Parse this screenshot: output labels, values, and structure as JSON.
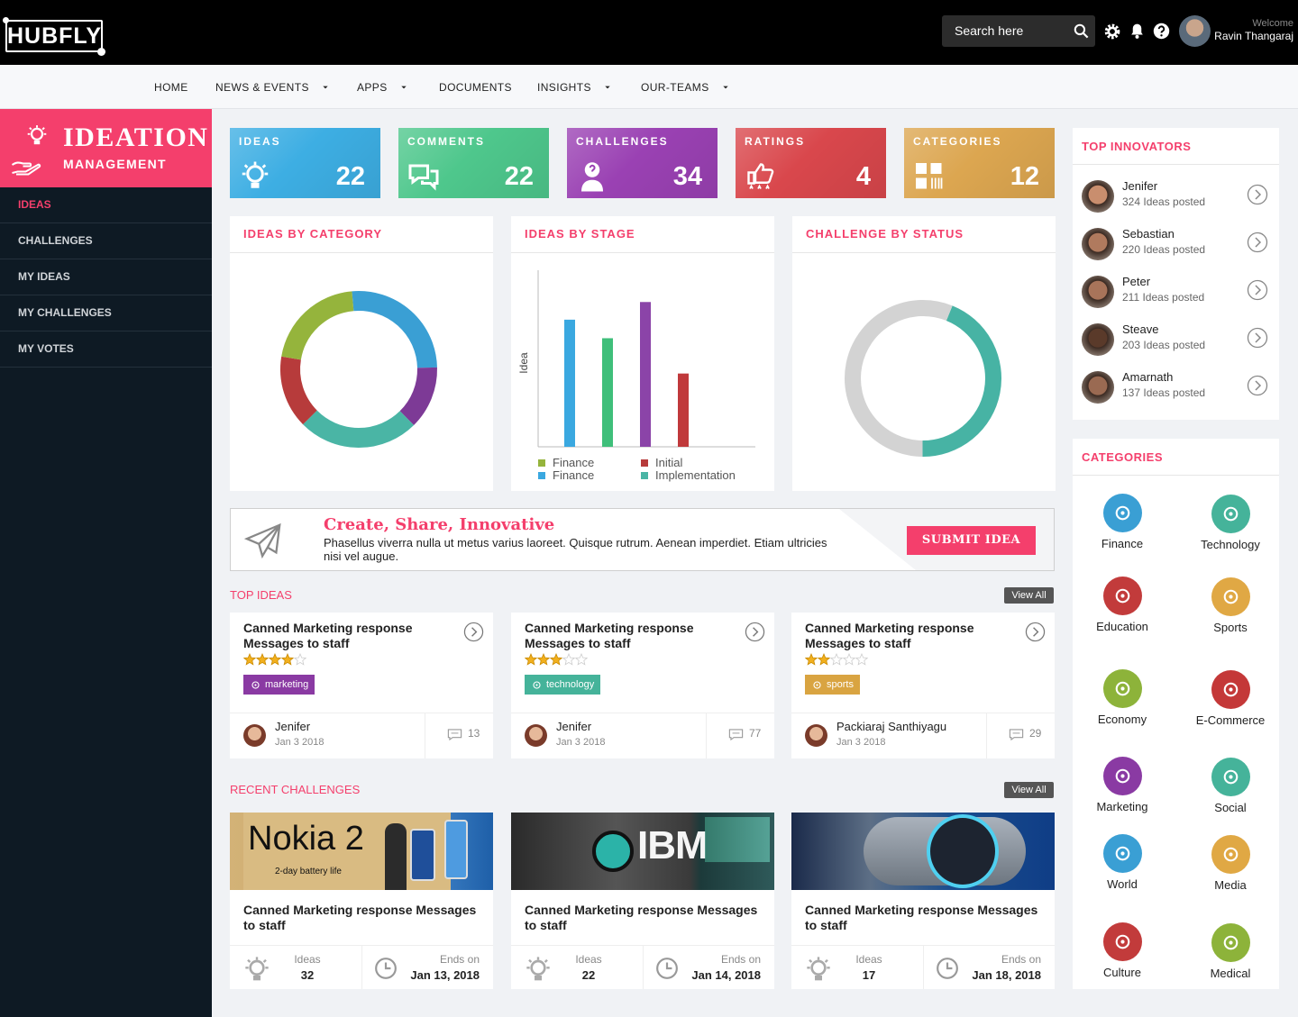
{
  "header": {
    "logo": "HUBFLY",
    "search": "Search here",
    "welcome": "Welcome",
    "user": "Ravin Thangaraj"
  },
  "nav": [
    {
      "label": "HOME",
      "dropdown": false
    },
    {
      "label": "NEWS & EVENTS",
      "dropdown": true
    },
    {
      "label": "APPS",
      "dropdown": true
    },
    {
      "label": "DOCUMENTS",
      "dropdown": false
    },
    {
      "label": "INSIGHTS",
      "dropdown": true
    },
    {
      "label": "OUR-TEAMS",
      "dropdown": true
    }
  ],
  "sidebar": {
    "title": "IDEATION",
    "subtitle": "MANAGEMENT",
    "items": [
      "IDEAS",
      "CHALLENGES",
      "MY IDEAS",
      "MY CHALLENGES",
      "MY VOTES"
    ],
    "active": 0
  },
  "stats": [
    {
      "label": "IDEAS",
      "value": 22,
      "color": "#3daee3"
    },
    {
      "label": "COMMENTS",
      "value": 22,
      "color": "#4ec78c"
    },
    {
      "label": "CHALLENGES",
      "value": 34,
      "color": "#9a41b3"
    },
    {
      "label": "RATINGS",
      "value": 4,
      "color": "#d9474c"
    },
    {
      "label": "CATEGORIES",
      "value": 12,
      "color": "#dca650"
    }
  ],
  "chart_data": [
    {
      "type": "donut",
      "title": "IDEAS BY CATEGORY",
      "values": [
        26,
        13,
        25,
        15,
        21
      ],
      "colors": [
        "#3a9fd4",
        "#7d3a96",
        "#4ab5a5",
        "#b73b3b",
        "#95b43c"
      ]
    },
    {
      "type": "bar",
      "title": "IDEAS BY STAGE",
      "y_label": "Idea",
      "values": [
        144,
        123,
        164,
        83
      ],
      "colors": [
        "#3aa8e0",
        "#3fbf7a",
        "#8b44a8",
        "#c0393b"
      ],
      "ylim": [
        0,
        200
      ],
      "legend": [
        {
          "name": "Finance",
          "color": "#95b43c"
        },
        {
          "name": "Finance",
          "color": "#3aa8e0"
        },
        {
          "name": "Initial",
          "color": "#b73b3b"
        },
        {
          "name": "Implementation",
          "color": "#4ab5a5"
        }
      ]
    },
    {
      "type": "donut",
      "title": "CHALLENGE BY STATUS",
      "values": [
        44,
        56
      ],
      "colors": [
        "#47b3a4",
        "#d3d3d3"
      ]
    }
  ],
  "banner": {
    "title": "Create, Share, Innovative",
    "text": "Phasellus viverra nulla ut metus varius laoreet. Quisque rutrum. Aenean imperdiet. Etiam ultricies nisi vel augue.",
    "button": "SUBMIT IDEA"
  },
  "top_ideas": {
    "title": "TOP IDEAS",
    "view_all": "View All",
    "cards": [
      {
        "title": "Canned Marketing response Messages to staff",
        "rating": 4,
        "rating_max": 5,
        "tag": "marketing",
        "tag_color": "#8a3aa3",
        "author": "Jenifer",
        "date": "Jan 3 2018",
        "comments": 13
      },
      {
        "title": "Canned Marketing response Messages to staff",
        "rating": 3,
        "rating_max": 5,
        "tag": "technology",
        "tag_color": "#45b39a",
        "author": "Jenifer",
        "date": "Jan 3 2018",
        "comments": 77
      },
      {
        "title": "Canned Marketing response Messages to staff",
        "rating": 2,
        "rating_max": 5,
        "tag": "sports",
        "tag_color": "#d9a441",
        "author": "Packiaraj Santhiyagu",
        "date": "Jan 3 2018",
        "comments": 29
      }
    ]
  },
  "recent_challenges": {
    "title": "RECENT CHALLENGES",
    "view_all": "View All",
    "cards": [
      {
        "image_text": [
          "Nokia 2",
          "2-day battery life"
        ],
        "title": "Canned Marketing response Messages to staff",
        "ideas_label": "Ideas",
        "ideas": 32,
        "ends_label": "Ends on",
        "ends": "Jan 13, 2018"
      },
      {
        "image_text": [
          "IBM"
        ],
        "title": "Canned Marketing response Messages to staff",
        "ideas_label": "Ideas",
        "ideas": 22,
        "ends_label": "Ends on",
        "ends": "Jan 14, 2018"
      },
      {
        "title": "Canned Marketing response Messages to staff",
        "ideas_label": "Ideas",
        "ideas": 17,
        "ends_label": "Ends on",
        "ends": "Jan 18, 2018"
      }
    ]
  },
  "top_innovators": {
    "title": "TOP INNOVATORS",
    "people": [
      {
        "name": "Jenifer",
        "posts": "324 Ideas posted"
      },
      {
        "name": "Sebastian",
        "posts": "220 Ideas posted"
      },
      {
        "name": "Peter",
        "posts": "211 Ideas posted"
      },
      {
        "name": "Steave",
        "posts": "203 Ideas posted"
      },
      {
        "name": "Amarnath",
        "posts": "137 Ideas posted"
      }
    ]
  },
  "categories": {
    "title": "CATEGORIES",
    "items": [
      {
        "name": "Finance",
        "color": "#3a9fd4"
      },
      {
        "name": "Technology",
        "color": "#45b39a"
      },
      {
        "name": "Education",
        "color": "#c23b3b"
      },
      {
        "name": "Sports",
        "color": "#e0a844"
      },
      {
        "name": "Economy",
        "color": "#8db33a"
      },
      {
        "name": "E-Commerce",
        "color": "#c43838"
      },
      {
        "name": "Marketing",
        "color": "#8a3aa3"
      },
      {
        "name": "Social",
        "color": "#45b39a"
      },
      {
        "name": "World",
        "color": "#3a9fd4"
      },
      {
        "name": "Media",
        "color": "#e0a844"
      },
      {
        "name": "Culture",
        "color": "#c23b3b"
      },
      {
        "name": "Medical",
        "color": "#8db33a"
      }
    ]
  }
}
